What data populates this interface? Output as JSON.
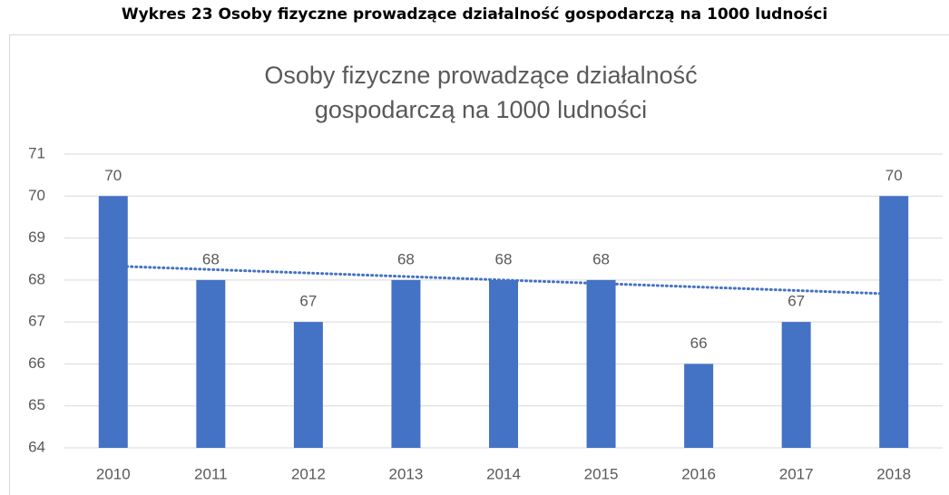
{
  "caption": "Wykres 23 Osoby fizyczne prowadzące działalność gospodarczą na 1000 ludności",
  "chart_data": {
    "type": "bar",
    "title": "Osoby fizyczne prowadzące działalność gospodarczą na 1000 ludności",
    "categories": [
      "2010",
      "2011",
      "2012",
      "2013",
      "2014",
      "2015",
      "2016",
      "2017",
      "2018"
    ],
    "values": [
      70,
      68,
      67,
      68,
      68,
      68,
      66,
      67,
      70
    ],
    "color": "#4472c4",
    "ylim": [
      64,
      71
    ],
    "yticks": [
      64,
      65,
      66,
      67,
      68,
      69,
      70,
      71
    ],
    "grid": true,
    "trendline": "linear"
  }
}
